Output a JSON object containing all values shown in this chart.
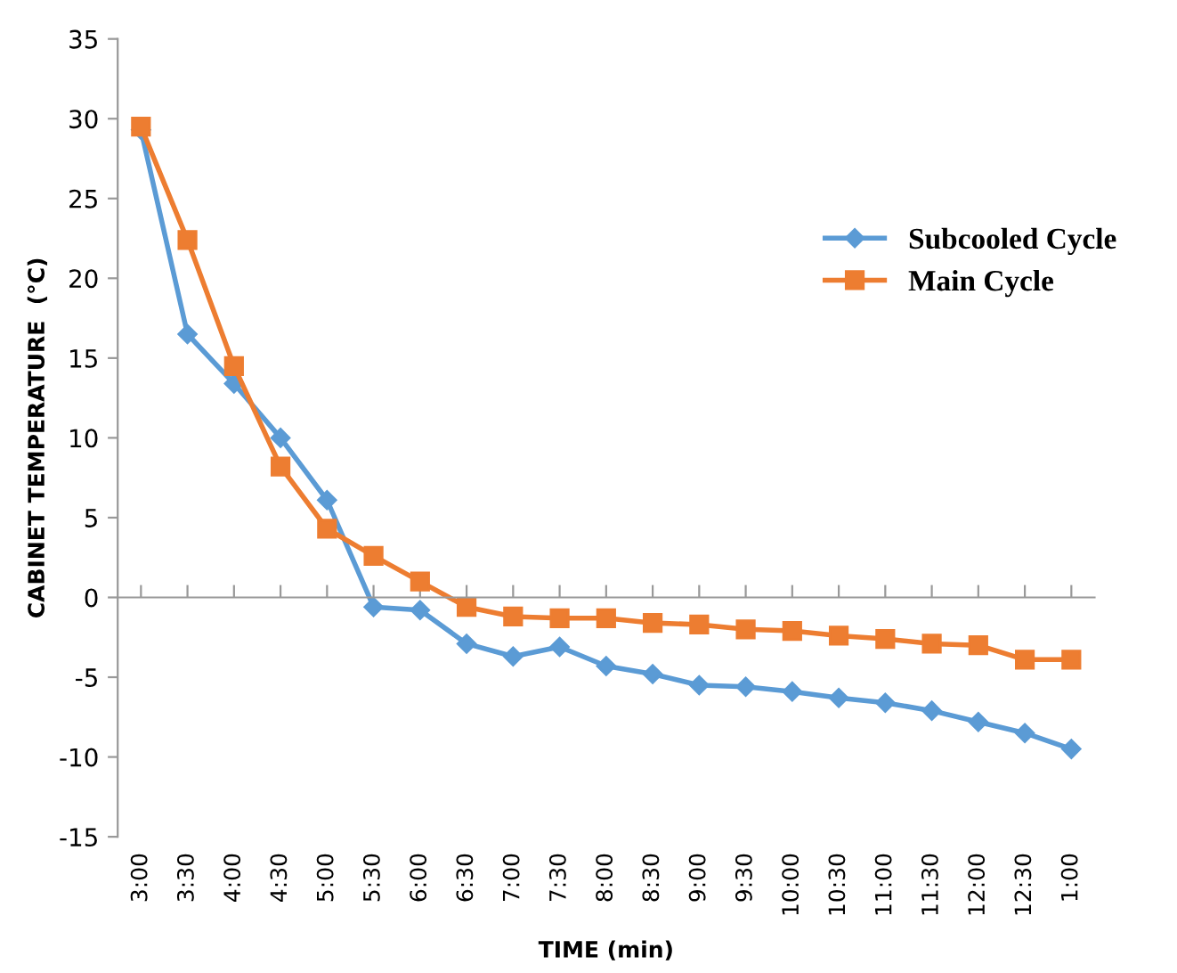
{
  "chart_data": {
    "type": "line",
    "xlabel": "TIME (min)",
    "ylabel": "CABINET TEMPERATURE  (°C)",
    "categories": [
      "3:00",
      "3:30",
      "4:00",
      "4:30",
      "5:00",
      "5:30",
      "6:00",
      "6:30",
      "7:00",
      "7:30",
      "8:00",
      "8:30",
      "9:00",
      "9:30",
      "10:00",
      "10:30",
      "11:00",
      "11:30",
      "12:00",
      "12:30",
      "1:00"
    ],
    "series": [
      {
        "name": "Subcooled Cycle",
        "color": "#5b9bd5",
        "marker": "diamond",
        "values": [
          29.3,
          16.5,
          13.4,
          10.0,
          6.1,
          -0.6,
          -0.8,
          -2.9,
          -3.7,
          -3.1,
          -4.3,
          -4.8,
          -5.5,
          -5.6,
          -5.9,
          -6.3,
          -6.6,
          -7.1,
          -7.8,
          -8.5,
          -9.5
        ]
      },
      {
        "name": "Main Cycle",
        "color": "#ed7d31",
        "marker": "square",
        "values": [
          29.5,
          22.4,
          14.5,
          8.2,
          4.3,
          2.6,
          1.0,
          -0.6,
          -1.2,
          -1.3,
          -1.3,
          -1.6,
          -1.7,
          -2.0,
          -2.1,
          -2.4,
          -2.6,
          -2.9,
          -3.0,
          -3.9,
          -3.9
        ]
      }
    ],
    "ylim": [
      -15,
      35
    ],
    "yticks": [
      -15,
      -10,
      -5,
      0,
      5,
      10,
      15,
      20,
      25,
      30,
      35
    ],
    "legend": "right",
    "line_style": "solid"
  }
}
